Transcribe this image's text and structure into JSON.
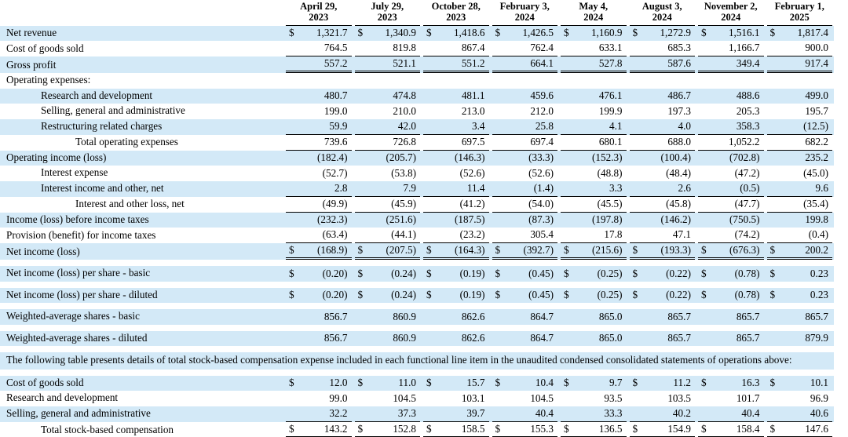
{
  "page": {
    "background": "#ffffff",
    "row_highlight_color": "#d3e9f7",
    "rule_color": "#000000",
    "text_color": "#000000"
  },
  "table": {
    "columns": [
      {
        "line1": "April 29,",
        "line2": "2023"
      },
      {
        "line1": "July 29,",
        "line2": "2023"
      },
      {
        "line1": "October 28,",
        "line2": "2023"
      },
      {
        "line1": "February 3,",
        "line2": "2024"
      },
      {
        "line1": "May 4,",
        "line2": "2024"
      },
      {
        "line1": "August 3,",
        "line2": "2024"
      },
      {
        "line1": "November 2,",
        "line2": "2024"
      },
      {
        "line1": "February 1,",
        "line2": "2025"
      }
    ],
    "rows": [
      {
        "type": "data",
        "label": "Net revenue",
        "indent": 0,
        "bg": "blue",
        "dollar": true,
        "rule": "none",
        "values": [
          "1,321.7",
          "1,340.9",
          "1,418.6",
          "1,426.5",
          "1,160.9",
          "1,272.9",
          "1,516.1",
          "1,817.4"
        ]
      },
      {
        "type": "data",
        "label": "Cost of goods sold",
        "indent": 0,
        "bg": "white",
        "dollar": false,
        "rule": "single",
        "values": [
          "764.5",
          "819.8",
          "867.4",
          "762.4",
          "633.1",
          "685.3",
          "1,166.7",
          "900.0"
        ]
      },
      {
        "type": "data",
        "label": "Gross profit",
        "indent": 0,
        "bg": "blue",
        "dollar": false,
        "rule": "double",
        "values": [
          "557.2",
          "521.1",
          "551.2",
          "664.1",
          "527.8",
          "587.6",
          "349.4",
          "917.4"
        ]
      },
      {
        "type": "section",
        "label": "Operating expenses:",
        "indent": 0,
        "bg": "white"
      },
      {
        "type": "data",
        "label": "Research and development",
        "indent": 1,
        "bg": "blue",
        "dollar": false,
        "rule": "none",
        "values": [
          "480.7",
          "474.8",
          "481.1",
          "459.6",
          "476.1",
          "486.7",
          "488.6",
          "499.0"
        ]
      },
      {
        "type": "data",
        "label": "Selling, general and administrative",
        "indent": 1,
        "bg": "white",
        "dollar": false,
        "rule": "none",
        "values": [
          "199.0",
          "210.0",
          "213.0",
          "212.0",
          "199.9",
          "197.3",
          "205.3",
          "195.7"
        ]
      },
      {
        "type": "data",
        "label": "Restructuring related charges",
        "indent": 1,
        "bg": "blue",
        "dollar": false,
        "rule": "single",
        "values": [
          "59.9",
          "42.0",
          "3.4",
          "25.8",
          "4.1",
          "4.0",
          "358.3",
          "(12.5)"
        ]
      },
      {
        "type": "data",
        "label": "Total operating expenses",
        "indent": 2,
        "bg": "white",
        "dollar": false,
        "rule": "single",
        "values": [
          "739.6",
          "726.8",
          "697.5",
          "697.4",
          "680.1",
          "688.0",
          "1,052.2",
          "682.2"
        ]
      },
      {
        "type": "data",
        "label": "Operating income (loss)",
        "indent": 0,
        "bg": "blue",
        "dollar": false,
        "rule": "none",
        "values": [
          "(182.4)",
          "(205.7)",
          "(146.3)",
          "(33.3)",
          "(152.3)",
          "(100.4)",
          "(702.8)",
          "235.2"
        ]
      },
      {
        "type": "data",
        "label": "Interest expense",
        "indent": 1,
        "bg": "white",
        "dollar": false,
        "rule": "none",
        "values": [
          "(52.7)",
          "(53.8)",
          "(52.6)",
          "(52.6)",
          "(48.8)",
          "(48.4)",
          "(47.2)",
          "(45.0)"
        ]
      },
      {
        "type": "data",
        "label": "Interest income and other, net",
        "indent": 1,
        "bg": "blue",
        "dollar": false,
        "rule": "single",
        "values": [
          "2.8",
          "7.9",
          "11.4",
          "(1.4)",
          "3.3",
          "2.6",
          "(0.5)",
          "9.6"
        ]
      },
      {
        "type": "data",
        "label": "Interest and other loss, net",
        "indent": 2,
        "bg": "white",
        "dollar": false,
        "rule": "single",
        "values": [
          "(49.9)",
          "(45.9)",
          "(41.2)",
          "(54.0)",
          "(45.5)",
          "(45.8)",
          "(47.7)",
          "(35.4)"
        ]
      },
      {
        "type": "data",
        "label": "Income (loss) before income taxes",
        "indent": 0,
        "bg": "blue",
        "dollar": false,
        "rule": "none",
        "values": [
          "(232.3)",
          "(251.6)",
          "(187.5)",
          "(87.3)",
          "(197.8)",
          "(146.2)",
          "(750.5)",
          "199.8"
        ]
      },
      {
        "type": "data",
        "label": "Provision (benefit) for income taxes",
        "indent": 0,
        "bg": "white",
        "dollar": false,
        "rule": "single",
        "values": [
          "(63.4)",
          "(44.1)",
          "(23.2)",
          "305.4",
          "17.8",
          "47.1",
          "(74.2)",
          "(0.4)"
        ]
      },
      {
        "type": "data",
        "label": "Net income (loss)",
        "indent": 0,
        "bg": "blue",
        "dollar": true,
        "rule": "double",
        "values": [
          "(168.9)",
          "(207.5)",
          "(164.3)",
          "(392.7)",
          "(215.6)",
          "(193.3)",
          "(676.3)",
          "200.2"
        ]
      },
      {
        "type": "spacer"
      },
      {
        "type": "data",
        "label": "Net income (loss) per share - basic",
        "indent": 0,
        "bg": "blue",
        "dollar": true,
        "rule": "none",
        "values": [
          "(0.20)",
          "(0.24)",
          "(0.19)",
          "(0.45)",
          "(0.25)",
          "(0.22)",
          "(0.78)",
          "0.23"
        ]
      },
      {
        "type": "spacer"
      },
      {
        "type": "data",
        "label": "Net income (loss) per share - diluted",
        "indent": 0,
        "bg": "blue",
        "dollar": true,
        "rule": "none",
        "values": [
          "(0.20)",
          "(0.24)",
          "(0.19)",
          "(0.45)",
          "(0.25)",
          "(0.22)",
          "(0.78)",
          "0.23"
        ]
      },
      {
        "type": "spacer"
      },
      {
        "type": "data",
        "label": "Weighted-average shares - basic",
        "indent": 0,
        "bg": "blue",
        "dollar": false,
        "rule": "none",
        "values": [
          "856.7",
          "860.9",
          "862.6",
          "864.7",
          "865.0",
          "865.7",
          "865.7",
          "865.7"
        ]
      },
      {
        "type": "spacer"
      },
      {
        "type": "data",
        "label": "Weighted-average shares - diluted",
        "indent": 0,
        "bg": "blue",
        "dollar": false,
        "rule": "none",
        "values": [
          "856.7",
          "860.9",
          "862.6",
          "864.7",
          "865.0",
          "865.7",
          "865.7",
          "879.9"
        ]
      },
      {
        "type": "spacer"
      },
      {
        "type": "note",
        "bg": "blue",
        "label": "The following table presents details of total stock-based compensation expense included in each functional line item in the unaudited condensed consolidated statements of operations above:"
      },
      {
        "type": "spacer"
      },
      {
        "type": "data",
        "label": "Cost of goods sold",
        "indent": 0,
        "bg": "blue",
        "dollar": true,
        "rule": "none",
        "values": [
          "12.0",
          "11.0",
          "15.7",
          "10.4",
          "9.7",
          "11.2",
          "16.3",
          "10.1"
        ]
      },
      {
        "type": "data",
        "label": "Research and development",
        "indent": 0,
        "bg": "white",
        "dollar": false,
        "rule": "none",
        "values": [
          "99.0",
          "104.5",
          "103.1",
          "104.5",
          "93.5",
          "103.5",
          "101.7",
          "96.9"
        ]
      },
      {
        "type": "data",
        "label": "Selling, general and administrative",
        "indent": 0,
        "bg": "blue",
        "dollar": false,
        "rule": "single",
        "values": [
          "32.2",
          "37.3",
          "39.7",
          "40.4",
          "33.3",
          "40.2",
          "40.4",
          "40.6"
        ]
      },
      {
        "type": "data",
        "label": "Total stock-based compensation",
        "indent": 1,
        "bg": "white",
        "dollar": true,
        "rule": "double",
        "values": [
          "143.2",
          "152.8",
          "158.5",
          "155.3",
          "136.5",
          "154.9",
          "158.4",
          "147.6"
        ]
      }
    ]
  }
}
